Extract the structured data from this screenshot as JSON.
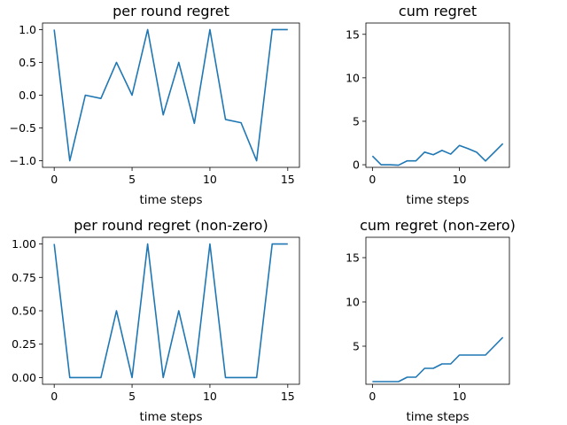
{
  "chart_data": [
    {
      "type": "line",
      "title": "per round regret",
      "xlabel": "time steps",
      "ylabel": "",
      "xlim": [
        -0.75,
        15.75
      ],
      "ylim": [
        -1.1,
        1.1
      ],
      "xticks": [
        0,
        5,
        10,
        15
      ],
      "xtick_labels": [
        "0",
        "5",
        "10",
        "15"
      ],
      "yticks": [
        -1.0,
        -0.5,
        0.0,
        0.5,
        1.0
      ],
      "ytick_labels": [
        "−1.0",
        "−0.5",
        "0.0",
        "0.5",
        "1.0"
      ],
      "grid": false,
      "color": "#1f77b4",
      "x": [
        0,
        1,
        2,
        3,
        4,
        5,
        6,
        7,
        8,
        9,
        10,
        11,
        12,
        13,
        14,
        15
      ],
      "y": [
        1.0,
        -1.0,
        0.0,
        -0.05,
        0.5,
        0.0,
        1.0,
        -0.3,
        0.5,
        -0.43,
        1.0,
        -0.37,
        -0.42,
        -1.0,
        1.0,
        1.0
      ]
    },
    {
      "type": "line",
      "title": "cum regret",
      "xlabel": "time steps",
      "ylabel": "",
      "xlim": [
        -0.75,
        15.75
      ],
      "ylim": [
        -0.3,
        16.3
      ],
      "xticks": [
        0,
        10
      ],
      "xtick_labels": [
        "0",
        "10"
      ],
      "yticks": [
        0,
        5,
        10,
        15
      ],
      "ytick_labels": [
        "0",
        "5",
        "10",
        "15"
      ],
      "grid": false,
      "color": "#1f77b4",
      "x": [
        0,
        1,
        2,
        3,
        4,
        5,
        6,
        7,
        8,
        9,
        10,
        11,
        12,
        13,
        14,
        15
      ],
      "y": [
        1.0,
        0.0,
        0.0,
        -0.05,
        0.45,
        0.45,
        1.45,
        1.15,
        1.65,
        1.22,
        2.22,
        1.85,
        1.43,
        0.43,
        1.43,
        2.43
      ]
    },
    {
      "type": "line",
      "title": "per round regret (non-zero)",
      "xlabel": "time steps",
      "ylabel": "",
      "xlim": [
        -0.75,
        15.75
      ],
      "ylim": [
        -0.05,
        1.05
      ],
      "xticks": [
        0,
        5,
        10,
        15
      ],
      "xtick_labels": [
        "0",
        "5",
        "10",
        "15"
      ],
      "yticks": [
        0.0,
        0.25,
        0.5,
        0.75,
        1.0
      ],
      "ytick_labels": [
        "0.00",
        "0.25",
        "0.50",
        "0.75",
        "1.00"
      ],
      "grid": false,
      "color": "#1f77b4",
      "x": [
        0,
        1,
        2,
        3,
        4,
        5,
        6,
        7,
        8,
        9,
        10,
        11,
        12,
        13,
        14,
        15
      ],
      "y": [
        1.0,
        0.0,
        0.0,
        0.0,
        0.5,
        0.0,
        1.0,
        0.0,
        0.5,
        0.0,
        1.0,
        0.0,
        0.0,
        0.0,
        1.0,
        1.0
      ]
    },
    {
      "type": "line",
      "title": "cum regret (non-zero)",
      "xlabel": "time steps",
      "ylabel": "",
      "xlim": [
        -0.75,
        15.75
      ],
      "ylim": [
        0.7,
        17.3
      ],
      "xticks": [
        0,
        10
      ],
      "xtick_labels": [
        "0",
        "10"
      ],
      "yticks": [
        5,
        10,
        15
      ],
      "ytick_labels": [
        "5",
        "10",
        "15"
      ],
      "grid": false,
      "color": "#1f77b4",
      "x": [
        0,
        1,
        2,
        3,
        4,
        5,
        6,
        7,
        8,
        9,
        10,
        11,
        12,
        13,
        14,
        15
      ],
      "y": [
        1.0,
        1.0,
        1.0,
        1.0,
        1.5,
        1.5,
        2.5,
        2.5,
        3.0,
        3.0,
        4.0,
        4.0,
        4.0,
        4.0,
        5.0,
        6.0
      ]
    }
  ]
}
